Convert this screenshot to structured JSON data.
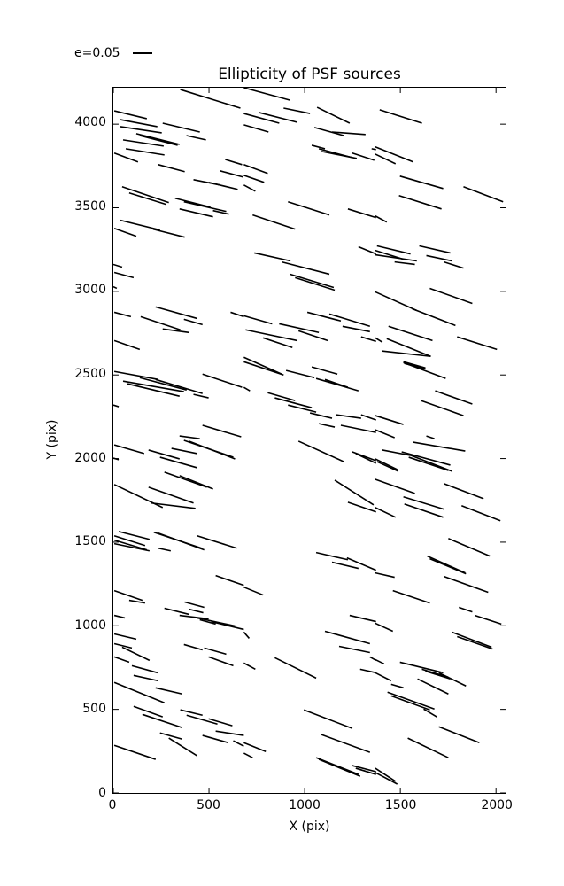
{
  "title": "Ellipticity of PSF sources",
  "legend": {
    "label": "e=0.05",
    "sample_icon": "line-sample",
    "line_color": "#000000"
  },
  "axes": {
    "xlabel": "X (pix)",
    "ylabel": "Y (pix)"
  },
  "chart_data": {
    "type": "line",
    "subtype": "whisker-segments (PSF ellipticity sticks)",
    "title": "Ellipticity of PSF sources",
    "xlabel": "X (pix)",
    "ylabel": "Y (pix)",
    "xlim": [
      0,
      2050
    ],
    "ylim": [
      0,
      4218
    ],
    "x_ticks": [
      0,
      500,
      1000,
      1500,
      2000
    ],
    "y_ticks": [
      0,
      500,
      1000,
      1500,
      2000,
      2500,
      3000,
      3500,
      4000
    ],
    "grid": false,
    "legend_position": "upper-left-outside",
    "legend_entries": [
      {
        "label": "e=0.05",
        "scale_ellipticity": 0.05
      }
    ],
    "line_color": "#000000",
    "segments": [
      [
        350,
        4207,
        664,
        4096
      ],
      [
        5,
        4080,
        175,
        4033
      ],
      [
        37,
        4027,
        230,
        3985
      ],
      [
        258,
        4006,
        452,
        3953
      ],
      [
        37,
        3985,
        253,
        3948
      ],
      [
        120,
        3943,
        346,
        3879
      ],
      [
        138,
        3932,
        336,
        3874
      ],
      [
        51,
        3906,
        263,
        3869
      ],
      [
        382,
        3932,
        484,
        3906
      ],
      [
        65,
        3853,
        267,
        3816
      ],
      [
        5,
        3827,
        129,
        3774
      ],
      [
        235,
        3758,
        373,
        3716
      ],
      [
        585,
        3789,
        673,
        3758
      ],
      [
        558,
        3721,
        677,
        3684
      ],
      [
        419,
        3668,
        558,
        3636
      ],
      [
        498,
        3652,
        650,
        3610
      ],
      [
        46,
        3626,
        290,
        3531
      ],
      [
        83,
        3589,
        277,
        3520
      ],
      [
        323,
        3557,
        507,
        3504
      ],
      [
        369,
        3536,
        590,
        3478
      ],
      [
        346,
        3493,
        521,
        3446
      ],
      [
        521,
        3483,
        604,
        3462
      ],
      [
        37,
        3425,
        244,
        3367
      ],
      [
        5,
        3377,
        120,
        3330
      ],
      [
        207,
        3372,
        373,
        3324
      ],
      [
        682,
        4218,
        922,
        4144
      ],
      [
        1065,
        4101,
        1235,
        4006
      ],
      [
        890,
        4096,
        1028,
        4064
      ],
      [
        761,
        4070,
        959,
        4012
      ],
      [
        682,
        4064,
        867,
        4006
      ],
      [
        1051,
        3980,
        1203,
        3932
      ],
      [
        1143,
        3953,
        1318,
        3938
      ],
      [
        682,
        3996,
        811,
        3953
      ],
      [
        1037,
        3874,
        1106,
        3853
      ],
      [
        1074,
        3853,
        1249,
        3800
      ],
      [
        1088,
        3837,
        1272,
        3795
      ],
      [
        1249,
        3827,
        1364,
        3784
      ],
      [
        1350,
        3853,
        1373,
        3848
      ],
      [
        682,
        3758,
        807,
        3705
      ],
      [
        682,
        3694,
        788,
        3652
      ],
      [
        682,
        3636,
        742,
        3599
      ],
      [
        913,
        3536,
        1129,
        3457
      ],
      [
        1226,
        3493,
        1373,
        3441
      ],
      [
        728,
        3457,
        950,
        3372
      ],
      [
        1281,
        3267,
        1373,
        3224
      ],
      [
        737,
        3230,
        926,
        3182
      ],
      [
        1392,
        4086,
        1613,
        4006
      ],
      [
        1369,
        3864,
        1567,
        3774
      ],
      [
        1369,
        3821,
        1475,
        3763
      ],
      [
        1498,
        3689,
        1724,
        3615
      ],
      [
        1830,
        3626,
        2037,
        3536
      ],
      [
        1493,
        3573,
        1715,
        3493
      ],
      [
        1369,
        3451,
        1429,
        3414
      ],
      [
        1378,
        3272,
        1553,
        3224
      ],
      [
        1369,
        3245,
        1516,
        3192
      ],
      [
        1369,
        3219,
        1586,
        3182
      ],
      [
        1599,
        3272,
        1761,
        3230
      ],
      [
        1636,
        3214,
        1770,
        3182
      ],
      [
        0,
        3161,
        46,
        3145
      ],
      [
        5,
        3113,
        106,
        3082
      ],
      [
        0,
        3028,
        18,
        3018
      ],
      [
        5,
        2875,
        92,
        2849
      ],
      [
        221,
        2907,
        438,
        2838
      ],
      [
        143,
        2849,
        350,
        2770
      ],
      [
        369,
        2833,
        466,
        2801
      ],
      [
        613,
        2875,
        682,
        2849
      ],
      [
        258,
        2775,
        396,
        2754
      ],
      [
        5,
        2706,
        138,
        2653
      ],
      [
        5,
        2521,
        235,
        2473
      ],
      [
        51,
        2463,
        369,
        2400
      ],
      [
        138,
        2484,
        383,
        2410
      ],
      [
        74,
        2447,
        346,
        2373
      ],
      [
        221,
        2473,
        466,
        2389
      ],
      [
        466,
        2505,
        673,
        2426
      ],
      [
        419,
        2384,
        498,
        2363
      ],
      [
        0,
        2320,
        28,
        2310
      ],
      [
        466,
        2199,
        668,
        2130
      ],
      [
        346,
        2135,
        452,
        2119
      ],
      [
        880,
        3176,
        1129,
        3103
      ],
      [
        922,
        3103,
        1152,
        3023
      ],
      [
        950,
        3082,
        1157,
        3007
      ],
      [
        1014,
        2875,
        1189,
        2823
      ],
      [
        1129,
        2865,
        1341,
        2791
      ],
      [
        682,
        2854,
        830,
        2806
      ],
      [
        867,
        2806,
        1074,
        2754
      ],
      [
        1198,
        2791,
        1341,
        2759
      ],
      [
        691,
        2770,
        959,
        2706
      ],
      [
        968,
        2764,
        1120,
        2706
      ],
      [
        1295,
        2728,
        1373,
        2701
      ],
      [
        783,
        2722,
        936,
        2664
      ],
      [
        682,
        2606,
        880,
        2505
      ],
      [
        682,
        2579,
        890,
        2500
      ],
      [
        903,
        2527,
        1051,
        2484
      ],
      [
        1037,
        2548,
        1171,
        2505
      ],
      [
        1060,
        2479,
        1281,
        2405
      ],
      [
        1106,
        2473,
        1226,
        2426
      ],
      [
        682,
        2426,
        714,
        2405
      ],
      [
        807,
        2394,
        950,
        2347
      ],
      [
        844,
        2363,
        1037,
        2304
      ],
      [
        913,
        2320,
        1060,
        2278
      ],
      [
        1028,
        2273,
        1143,
        2241
      ],
      [
        1166,
        2262,
        1295,
        2241
      ],
      [
        1295,
        2262,
        1373,
        2231
      ],
      [
        1074,
        2209,
        1157,
        2188
      ],
      [
        1189,
        2199,
        1373,
        2156
      ],
      [
        1470,
        3176,
        1576,
        3161
      ],
      [
        1728,
        3176,
        1830,
        3139
      ],
      [
        1654,
        3018,
        1876,
        2928
      ],
      [
        1369,
        2997,
        1585,
        2886
      ],
      [
        1562,
        2896,
        1788,
        2796
      ],
      [
        1438,
        2791,
        1668,
        2706
      ],
      [
        1429,
        2717,
        1659,
        2611
      ],
      [
        1369,
        2722,
        1406,
        2696
      ],
      [
        1797,
        2728,
        2005,
        2653
      ],
      [
        1406,
        2643,
        1659,
        2611
      ],
      [
        1516,
        2579,
        1631,
        2542
      ],
      [
        1521,
        2569,
        1631,
        2537
      ],
      [
        1516,
        2574,
        1737,
        2479
      ],
      [
        1682,
        2405,
        1876,
        2326
      ],
      [
        1608,
        2347,
        1830,
        2257
      ],
      [
        1369,
        2257,
        1516,
        2204
      ],
      [
        1369,
        2172,
        1470,
        2125
      ],
      [
        1636,
        2135,
        1678,
        2119
      ],
      [
        5,
        2082,
        161,
        2030
      ],
      [
        184,
        2051,
        346,
        1998
      ],
      [
        304,
        2061,
        438,
        2030
      ],
      [
        369,
        2109,
        627,
        2008
      ],
      [
        396,
        2104,
        636,
        1998
      ],
      [
        244,
        2008,
        438,
        1945
      ],
      [
        0,
        2003,
        28,
        1993
      ],
      [
        267,
        1919,
        489,
        1829
      ],
      [
        346,
        1898,
        521,
        1818
      ],
      [
        184,
        1829,
        419,
        1734
      ],
      [
        5,
        1845,
        258,
        1707
      ],
      [
        198,
        1734,
        429,
        1702
      ],
      [
        28,
        1564,
        189,
        1517
      ],
      [
        5,
        1538,
        166,
        1480
      ],
      [
        5,
        1512,
        175,
        1454
      ],
      [
        5,
        1491,
        189,
        1448
      ],
      [
        212,
        1559,
        461,
        1464
      ],
      [
        235,
        1554,
        475,
        1454
      ],
      [
        438,
        1538,
        645,
        1464
      ],
      [
        235,
        1464,
        300,
        1448
      ],
      [
        535,
        1300,
        682,
        1242
      ],
      [
        5,
        1210,
        152,
        1152
      ],
      [
        83,
        1152,
        166,
        1136
      ],
      [
        373,
        1142,
        475,
        1110
      ],
      [
        267,
        1105,
        396,
        1068
      ],
      [
        396,
        1099,
        470,
        1078
      ],
      [
        968,
        2104,
        1203,
        1982
      ],
      [
        1249,
        2040,
        1373,
        1987
      ],
      [
        1267,
        2030,
        1373,
        1972
      ],
      [
        1157,
        1871,
        1360,
        1723
      ],
      [
        1226,
        1739,
        1373,
        1681
      ],
      [
        1060,
        1438,
        1226,
        1395
      ],
      [
        1143,
        1380,
        1281,
        1343
      ],
      [
        1221,
        1406,
        1373,
        1332
      ],
      [
        682,
        1231,
        783,
        1184
      ],
      [
        1567,
        2098,
        1839,
        2045
      ],
      [
        1406,
        2051,
        1553,
        2019
      ],
      [
        1369,
        1998,
        1484,
        1934
      ],
      [
        1378,
        1982,
        1489,
        1924
      ],
      [
        1530,
        2030,
        1770,
        1924
      ],
      [
        1544,
        2008,
        1751,
        1929
      ],
      [
        1507,
        2040,
        1761,
        1961
      ],
      [
        1728,
        1850,
        1935,
        1760
      ],
      [
        1369,
        1876,
        1576,
        1792
      ],
      [
        1516,
        1771,
        1728,
        1697
      ],
      [
        1521,
        1728,
        1724,
        1649
      ],
      [
        1820,
        1718,
        2023,
        1628
      ],
      [
        1369,
        1707,
        1475,
        1649
      ],
      [
        1751,
        1522,
        1968,
        1417
      ],
      [
        1641,
        1417,
        1839,
        1316
      ],
      [
        1654,
        1401,
        1843,
        1311
      ],
      [
        1369,
        1316,
        1470,
        1290
      ],
      [
        1728,
        1295,
        1959,
        1200
      ],
      [
        1461,
        1210,
        1654,
        1136
      ],
      [
        1806,
        1110,
        1876,
        1083
      ],
      [
        5,
        1062,
        60,
        1047
      ],
      [
        346,
        1062,
        498,
        1041
      ],
      [
        438,
        1047,
        636,
        999
      ],
      [
        452,
        1036,
        535,
        1010
      ],
      [
        512,
        1025,
        682,
        978
      ],
      [
        5,
        951,
        120,
        920
      ],
      [
        5,
        893,
        97,
        867
      ],
      [
        46,
        872,
        189,
        793
      ],
      [
        369,
        888,
        466,
        856
      ],
      [
        475,
        867,
        590,
        830
      ],
      [
        5,
        814,
        83,
        782
      ],
      [
        498,
        814,
        627,
        761
      ],
      [
        97,
        761,
        231,
        719
      ],
      [
        106,
        703,
        235,
        671
      ],
      [
        5,
        661,
        267,
        539
      ],
      [
        221,
        629,
        360,
        592
      ],
      [
        106,
        518,
        258,
        455
      ],
      [
        152,
        470,
        360,
        391
      ],
      [
        350,
        497,
        466,
        465
      ],
      [
        383,
        465,
        544,
        412
      ],
      [
        498,
        444,
        622,
        402
      ],
      [
        535,
        370,
        682,
        344
      ],
      [
        244,
        359,
        360,
        322
      ],
      [
        466,
        344,
        599,
        301
      ],
      [
        290,
        328,
        438,
        222
      ],
      [
        5,
        285,
        221,
        201
      ],
      [
        627,
        312,
        682,
        280
      ],
      [
        1235,
        1062,
        1373,
        1025
      ],
      [
        682,
        962,
        710,
        925
      ],
      [
        1106,
        967,
        1341,
        893
      ],
      [
        1180,
        877,
        1341,
        840
      ],
      [
        1341,
        814,
        1373,
        793
      ],
      [
        844,
        809,
        1060,
        687
      ],
      [
        682,
        777,
        742,
        740
      ],
      [
        1290,
        740,
        1373,
        719
      ],
      [
        996,
        497,
        1249,
        386
      ],
      [
        1088,
        349,
        1341,
        243
      ],
      [
        682,
        301,
        797,
        248
      ],
      [
        682,
        238,
        728,
        211
      ],
      [
        1060,
        211,
        1281,
        111
      ],
      [
        1074,
        201,
        1290,
        100
      ],
      [
        1249,
        164,
        1373,
        127
      ],
      [
        1267,
        148,
        1373,
        111
      ],
      [
        1890,
        1062,
        2028,
        1010
      ],
      [
        1369,
        1015,
        1461,
        967
      ],
      [
        1770,
        962,
        1977,
        872
      ],
      [
        1797,
        935,
        1982,
        861
      ],
      [
        1369,
        798,
        1415,
        772
      ],
      [
        1498,
        782,
        1724,
        719
      ],
      [
        1613,
        740,
        1751,
        692
      ],
      [
        1631,
        729,
        1761,
        682
      ],
      [
        1701,
        719,
        1843,
        640
      ],
      [
        1369,
        719,
        1452,
        671
      ],
      [
        1590,
        682,
        1751,
        592
      ],
      [
        1452,
        650,
        1516,
        629
      ],
      [
        1433,
        603,
        1678,
        502
      ],
      [
        1452,
        581,
        1654,
        497
      ],
      [
        1622,
        502,
        1691,
        455
      ],
      [
        1701,
        396,
        1913,
        301
      ],
      [
        1539,
        328,
        1751,
        211
      ],
      [
        1369,
        148,
        1475,
        69
      ],
      [
        1369,
        122,
        1484,
        53
      ]
    ]
  }
}
